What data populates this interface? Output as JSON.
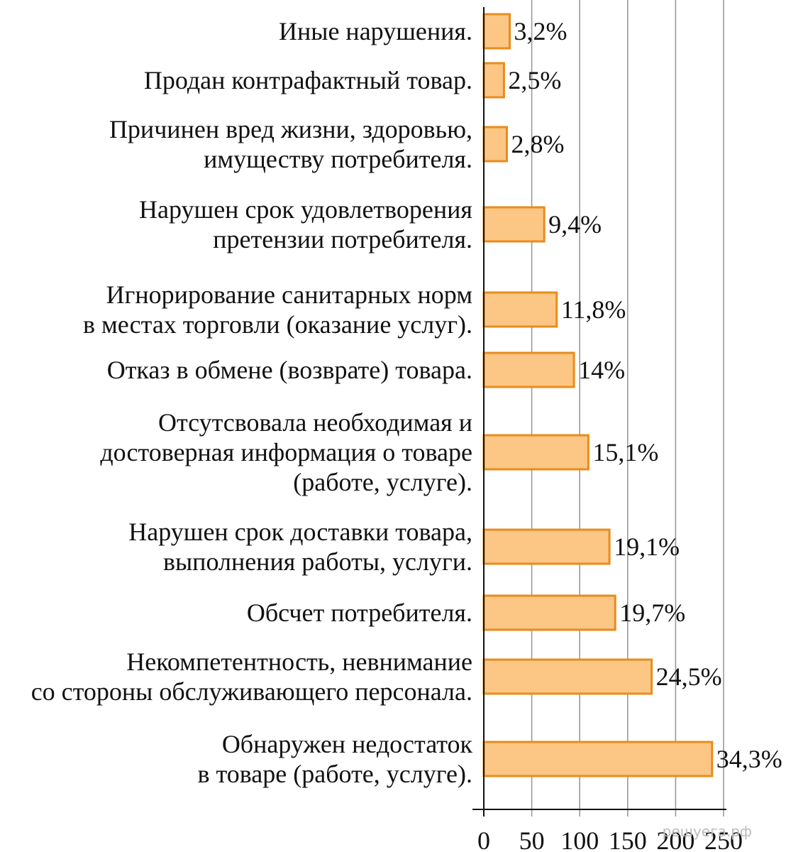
{
  "chart_data": {
    "type": "bar",
    "orientation": "horizontal",
    "categories": [
      [
        "Иные нарушения."
      ],
      [
        "Продан контрафактный товар."
      ],
      [
        "Причинен вред жизни, здоровью,",
        "имуществу потребителя."
      ],
      [
        "Нарушен срок удовлетворения",
        "претензии потребителя."
      ],
      [
        "Игнорирование санитарных норм",
        "в местах торговли (оказание услуг)."
      ],
      [
        "Отказ в обмене (возврате) товара."
      ],
      [
        "Отсутсвовала необходимая и",
        "достоверная информация о товаре",
        "(работе, услуге)."
      ],
      [
        "Нарушен срок доставки товара,",
        "выполнения работы, услуги."
      ],
      [
        "Обсчет потребителя."
      ],
      [
        "Некомпетентность, невнимание",
        "со стороны обслуживающего персонала."
      ],
      [
        "Обнаружен недостаток",
        "в товаре (работе, услуге)."
      ]
    ],
    "values": [
      27,
      21,
      24,
      63,
      76,
      94,
      109,
      131,
      137,
      175,
      238
    ],
    "data_labels": [
      "3,2%",
      "2,5%",
      "2,8%",
      "9,4%",
      "11,8%",
      "14%",
      "15,1%",
      "19,1%",
      "19,7%",
      "24,5%",
      "34,3%"
    ],
    "x_ticks": [
      "0",
      "50",
      "100",
      "150",
      "200",
      "250"
    ],
    "xlim": [
      0,
      250
    ],
    "grid": "vertical",
    "bar_fill": "#fcc684",
    "bar_stroke": "#e88c1c"
  },
  "watermark": "решуега.рф"
}
